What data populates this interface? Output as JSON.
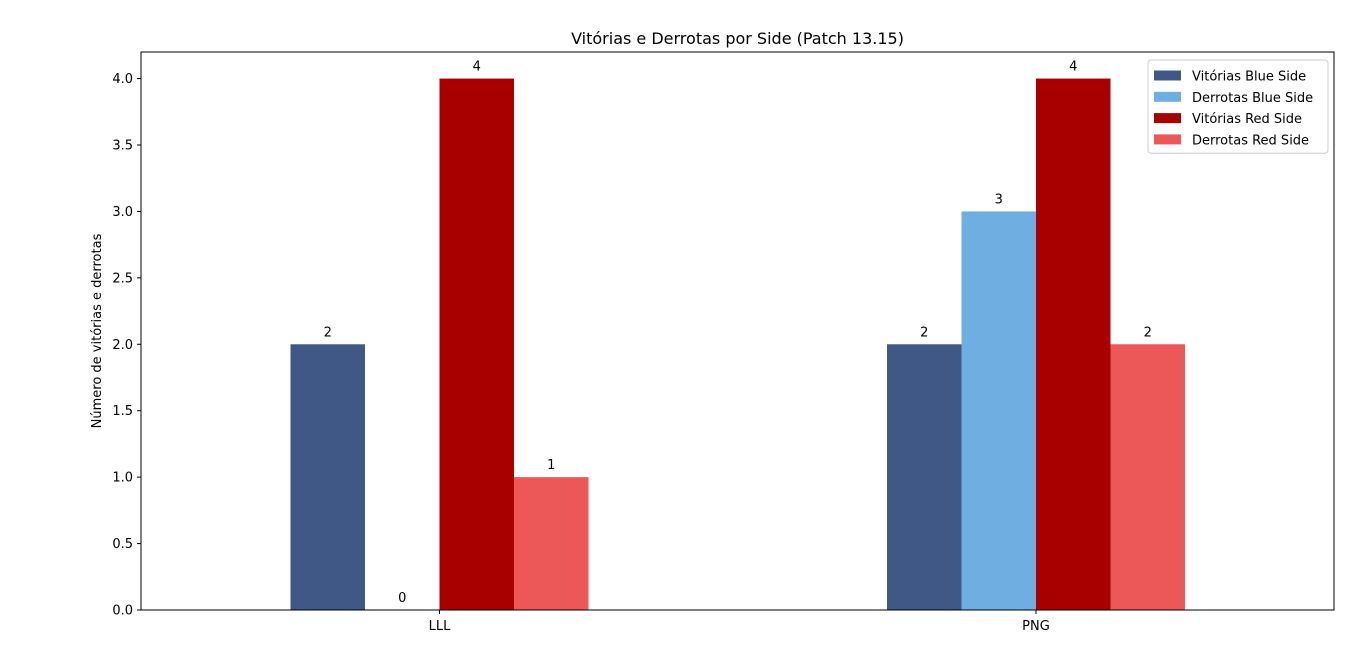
{
  "chart_data": {
    "type": "bar",
    "title": "Vitórias e Derrotas por Side (Patch 13.15)",
    "xlabel": "",
    "ylabel": "Número de vitórias e derrotas",
    "categories": [
      "LLL",
      "PNG"
    ],
    "ylim": [
      0,
      4.2
    ],
    "yticks": [
      0.0,
      0.5,
      1.0,
      1.5,
      2.0,
      2.5,
      3.0,
      3.5,
      4.0
    ],
    "ytick_labels": [
      "0.0",
      "0.5",
      "1.0",
      "1.5",
      "2.0",
      "2.5",
      "3.0",
      "3.5",
      "4.0"
    ],
    "grid": false,
    "legend_position": "top-right",
    "series": [
      {
        "name": "Vitórias Blue Side",
        "values": [
          2,
          2
        ],
        "color": "#3f5885"
      },
      {
        "name": "Derrotas Blue Side",
        "values": [
          0,
          3
        ],
        "color": "#6faee0"
      },
      {
        "name": "Vitórias Red Side",
        "values": [
          4,
          4
        ],
        "color": "#a80000"
      },
      {
        "name": "Derrotas Red Side",
        "values": [
          1,
          2
        ],
        "color": "#ec5757"
      }
    ]
  }
}
